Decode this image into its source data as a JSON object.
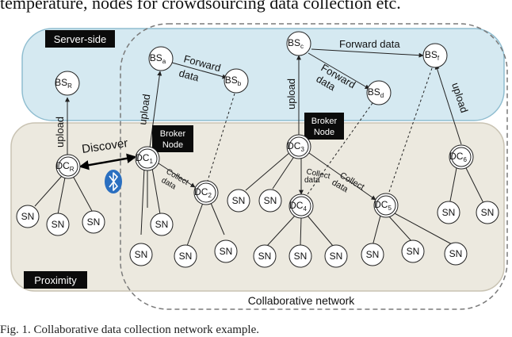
{
  "header_text": "temperature, nodes for crowdsourcing data collection etc.",
  "caption": "Fig. 1.  Collaborative data collection network example.",
  "regions": {
    "server_side": "Server-side",
    "proximity": "Proximity",
    "collaborative_network": "Collaborative network"
  },
  "edge_labels": {
    "upload": "upload",
    "discover": "Discover",
    "forward_data": "Forward data",
    "forward": "Forward",
    "data": "data",
    "collect": "Collect"
  },
  "broker_label": {
    "line1": "Broker",
    "line2": "Node"
  },
  "nodes": {
    "bs_prefix": "BS",
    "dc_prefix": "DC",
    "sn": "SN",
    "bs_subs": [
      "R",
      "a",
      "b",
      "c",
      "d",
      "f"
    ],
    "dc_subs": [
      "R",
      "1",
      "2",
      "3",
      "4",
      "5",
      "6"
    ]
  },
  "icons": {
    "bluetooth": "bluetooth-icon"
  },
  "colors": {
    "server_fill": "#d5e9f1",
    "server_stroke": "#8fbdd0",
    "proximity_fill": "#ece9df",
    "proximity_stroke": "#c9c3b3",
    "bluetooth": "#2a6fc0",
    "dark_box": "#0b0b0b"
  }
}
